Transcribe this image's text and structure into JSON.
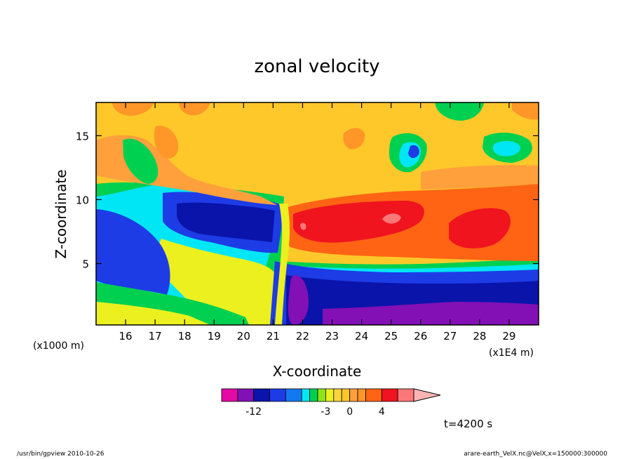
{
  "chart_data": {
    "type": "heatmap",
    "title": "zonal velocity",
    "xlabel": "X-coordinate",
    "ylabel": "Z-coordinate",
    "x_unit_left": "(x1000 m)",
    "x_unit_right": "(x1E4 m)",
    "x_ticks": [
      16,
      17,
      18,
      19,
      20,
      21,
      22,
      23,
      24,
      25,
      26,
      27,
      28,
      29
    ],
    "y_ticks": [
      5,
      10,
      15
    ],
    "xlim": [
      15,
      30
    ],
    "ylim": [
      0.2,
      17.6
    ],
    "colorbar": {
      "labels": [
        {
          "value": -12,
          "text": "-12"
        },
        {
          "value": -3,
          "text": "-3"
        },
        {
          "value": 0,
          "text": "0"
        },
        {
          "value": 4,
          "text": "4"
        }
      ],
      "bins": [
        {
          "lo": -16,
          "hi": -14,
          "color": "#e40aa4"
        },
        {
          "lo": -14,
          "hi": -12,
          "color": "#8210b4"
        },
        {
          "lo": -12,
          "hi": -10,
          "color": "#0a14aa"
        },
        {
          "lo": -10,
          "hi": -8,
          "color": "#1e3ce6"
        },
        {
          "lo": -8,
          "hi": -6,
          "color": "#1478f0"
        },
        {
          "lo": -6,
          "hi": -5,
          "color": "#00e6f5"
        },
        {
          "lo": -5,
          "hi": -4,
          "color": "#00d050"
        },
        {
          "lo": -4,
          "hi": -3,
          "color": "#8ce614"
        },
        {
          "lo": -3,
          "hi": -2,
          "color": "#ebf01e"
        },
        {
          "lo": -2,
          "hi": -1,
          "color": "#fad23c"
        },
        {
          "lo": -1,
          "hi": 0,
          "color": "#ffc82a"
        },
        {
          "lo": 0,
          "hi": 1,
          "color": "#ffa03c"
        },
        {
          "lo": 1,
          "hi": 2,
          "color": "#ff9628"
        },
        {
          "lo": 2,
          "hi": 4,
          "color": "#ff6414"
        },
        {
          "lo": 4,
          "hi": 6,
          "color": "#f0141e"
        },
        {
          "lo": 6,
          "hi": 8,
          "color": "#fa7878"
        },
        {
          "lo": 8,
          "hi": 10,
          "color": "#ffb4b4"
        }
      ]
    },
    "time_label": "t=4200 s"
  },
  "footer": {
    "program": "/usr/bin/gpview   2010-10-26",
    "source": "arare-earth_VelX.nc@VelX,x=150000:300000"
  }
}
